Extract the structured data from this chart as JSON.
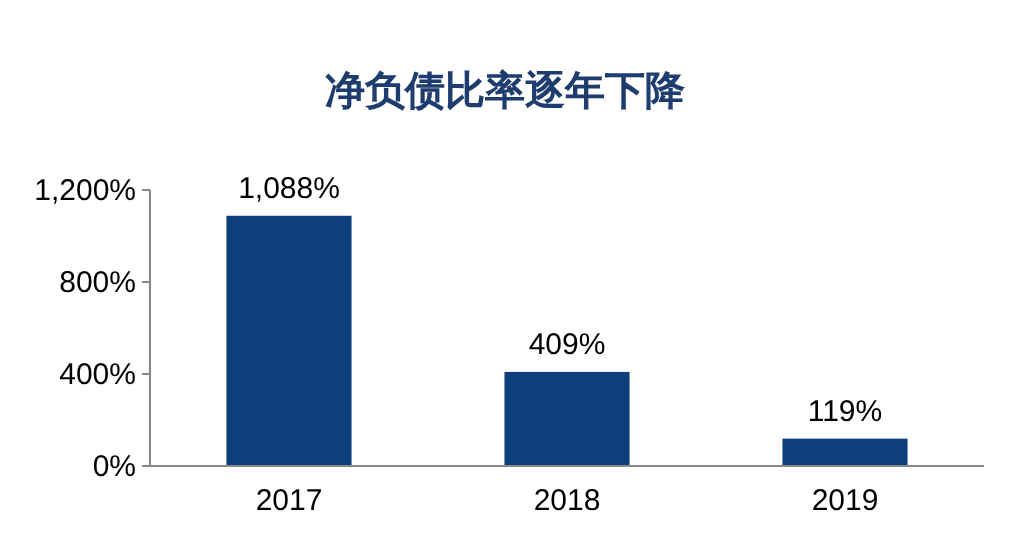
{
  "chart_data": {
    "type": "bar",
    "title": "净负债比率逐年下降",
    "categories": [
      "2017",
      "2018",
      "2019"
    ],
    "values": [
      1088,
      409,
      119
    ],
    "value_labels": [
      "1,088%",
      "409%",
      "119%"
    ],
    "color": "#0d3f7c",
    "ylim": [
      0,
      1200
    ],
    "yticks": [
      {
        "value": 0,
        "label": "0%"
      },
      {
        "value": 400,
        "label": "400%"
      },
      {
        "value": 800,
        "label": "800%"
      },
      {
        "value": 1200,
        "label": "1,200%"
      }
    ]
  }
}
